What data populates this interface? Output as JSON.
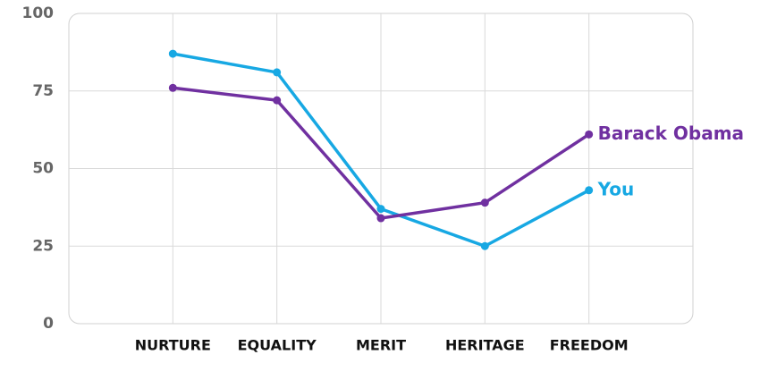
{
  "chart_data": {
    "type": "line",
    "categories": [
      "NURTURE",
      "EQUALITY",
      "MERIT",
      "HERITAGE",
      "FREEDOM"
    ],
    "series": [
      {
        "name": "You",
        "color": "#17a8e3",
        "values": [
          87,
          81,
          37,
          25,
          43
        ]
      },
      {
        "name": "Barack Obama",
        "color": "#7030a0",
        "values": [
          76,
          72,
          34,
          39,
          61
        ]
      }
    ],
    "ylim": [
      0,
      100
    ],
    "yticks": [
      0,
      25,
      50,
      75,
      100
    ],
    "grid": true
  }
}
